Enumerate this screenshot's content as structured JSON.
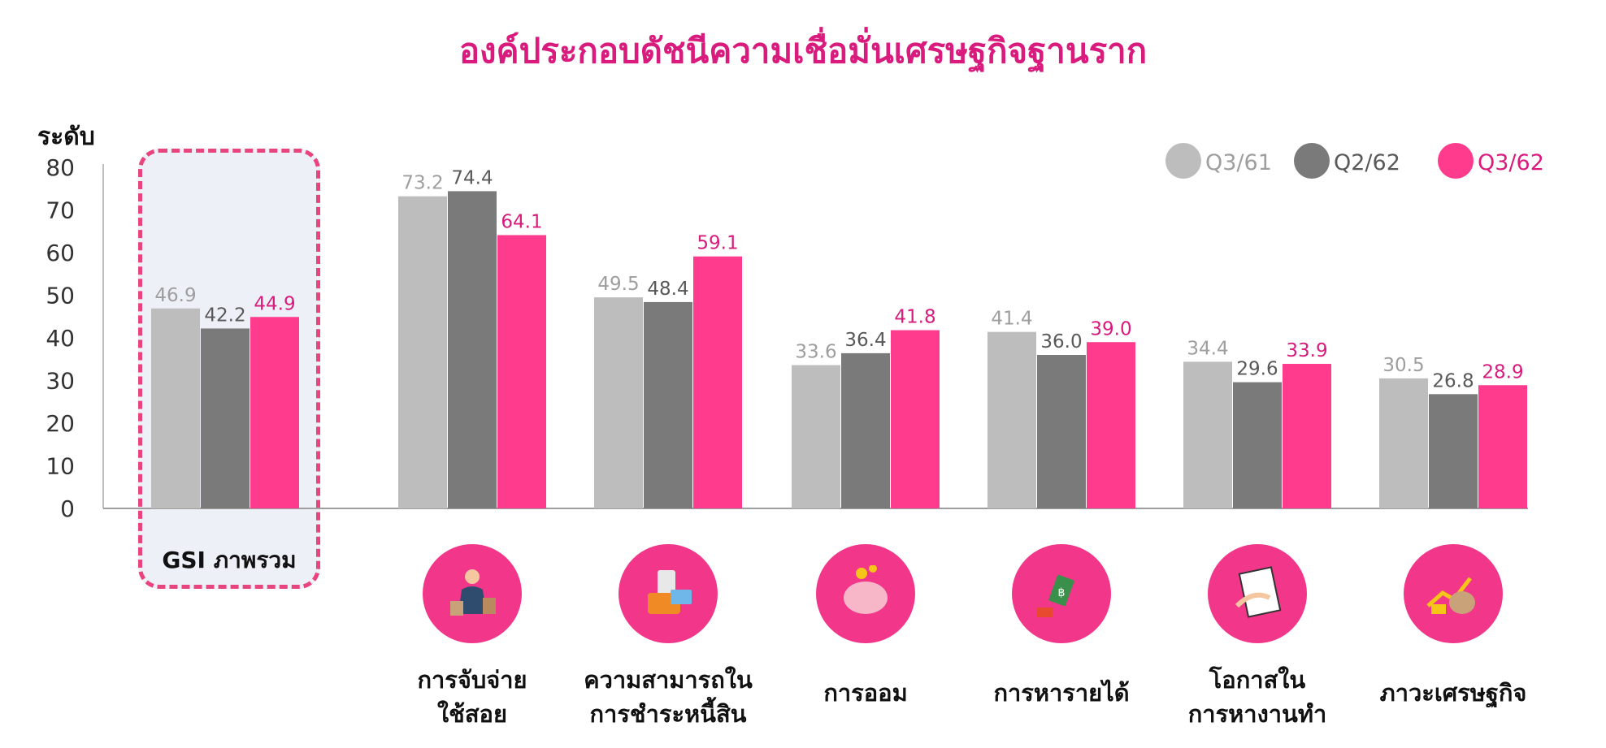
{
  "chart_data": {
    "type": "bar",
    "title": "องค์ประกอบดัชนีความเชื่อมั่นเศรษฐกิจฐานราก",
    "ylabel": "ระดับ",
    "ylim": [
      0,
      80
    ],
    "yticks": [
      0,
      10,
      20,
      30,
      40,
      50,
      60,
      70,
      80
    ],
    "grid": false,
    "legend_position": "top-right",
    "categories": [
      [
        "GSI ภาพรวม"
      ],
      [
        "การจับจ่าย",
        "ใช้สอย"
      ],
      [
        "ความสามารถใน",
        "การชำระหนี้สิน"
      ],
      [
        "การออม"
      ],
      [
        "การหารายได้"
      ],
      [
        "โอกาสใน",
        "การหางานทำ"
      ],
      [
        "ภาวะเศรษฐกิจ"
      ]
    ],
    "series": [
      {
        "name": "Q3/61",
        "color": "#bdbdbd",
        "label_color": "#9e9e9e",
        "values": [
          46.9,
          73.2,
          49.5,
          33.6,
          41.4,
          34.4,
          30.5
        ]
      },
      {
        "name": "Q2/62",
        "color": "#7a7a7a",
        "label_color": "#595959",
        "values": [
          42.2,
          74.4,
          48.4,
          36.4,
          36.0,
          29.6,
          26.8
        ]
      },
      {
        "name": "Q3/62",
        "color": "#ff3b8d",
        "label_color": "#d81b7d",
        "values": [
          44.9,
          64.1,
          59.1,
          41.8,
          39.0,
          33.9,
          28.9
        ]
      }
    ]
  },
  "icons": [
    "shopping-woman-icon",
    "wallet-card-icon",
    "piggy-bank-icon",
    "money-exchange-icon",
    "job-search-icon",
    "economy-growth-icon"
  ],
  "colors": {
    "accent": "#ff3b8d",
    "title": "#d81b7d",
    "icon_bg": "#f2378a"
  }
}
